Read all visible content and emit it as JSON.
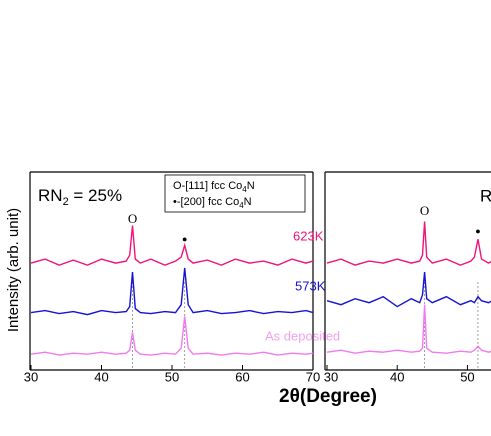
{
  "chart_data": [
    {
      "type": "line",
      "title_parts": [
        "RN",
        "2",
        " = 25%"
      ],
      "legend_lines": [
        [
          "O-[111]  fcc Co",
          "4",
          "N"
        ],
        [
          "•-[200] fcc Co",
          "4",
          "N"
        ]
      ],
      "ylabel": "Intensity (arb. unit)",
      "xlabel": "2θ(Degree)",
      "xlim": [
        30,
        70
      ],
      "xticks": [
        30,
        40,
        50,
        60,
        70
      ],
      "ylim": [
        0,
        100
      ],
      "ref_lines": [
        44.4,
        51.8
      ],
      "peak_labels": [
        {
          "x": 44.4,
          "label": "O"
        },
        {
          "x": 51.8,
          "label": "●"
        }
      ],
      "x": [
        30,
        32,
        34,
        36,
        38,
        40,
        42,
        43.5,
        44,
        44.4,
        44.8,
        45.5,
        47,
        49,
        50.5,
        51.3,
        51.8,
        52.3,
        53,
        55,
        57,
        59,
        61,
        63,
        65,
        67,
        69,
        70
      ],
      "series": [
        {
          "name": "623K",
          "color": "#f0147a",
          "values": [
            54,
            56,
            53,
            55.5,
            53,
            56,
            54,
            55,
            58,
            73,
            56,
            54,
            56,
            53,
            55,
            57,
            63,
            56,
            54,
            55.5,
            53,
            56,
            54,
            55,
            53,
            56,
            54,
            55
          ]
        },
        {
          "name": "573K",
          "color": "#1414d2",
          "values": [
            29,
            30,
            28.5,
            29.5,
            28,
            30,
            29,
            29.5,
            32,
            49.5,
            31,
            29,
            28.5,
            29.5,
            29,
            33,
            51.5,
            33,
            29,
            30,
            28.5,
            29,
            30,
            28.5,
            29.5,
            29,
            30,
            29
          ]
        },
        {
          "name": "As deposited",
          "color": "#f07af0",
          "values": [
            8,
            9,
            7.5,
            8.5,
            8,
            9,
            8,
            8.5,
            10,
            19,
            10,
            8,
            7.5,
            8.5,
            8,
            11,
            27,
            11,
            8,
            8.5,
            7.5,
            8.5,
            8,
            9,
            7.5,
            8.5,
            8,
            8.5
          ]
        }
      ]
    },
    {
      "type": "line",
      "annotation": "R",
      "xlim": [
        30,
        53.5
      ],
      "xticks": [
        30,
        40,
        50
      ],
      "ylim": [
        0,
        100
      ],
      "ref_lines": [
        43.9,
        51.5
      ],
      "peak_labels": [
        {
          "x": 43.9,
          "label": "O"
        },
        {
          "x": 51.5,
          "label": "●"
        }
      ],
      "x": [
        30,
        32,
        34,
        36,
        38,
        40,
        42,
        43.2,
        43.6,
        43.9,
        44.2,
        45,
        47,
        49,
        50.5,
        51,
        51.5,
        52,
        53,
        53.5
      ],
      "series": [
        {
          "color": "#f0147a",
          "values": [
            54,
            56,
            53,
            55,
            54,
            56,
            54,
            55,
            58,
            75,
            57,
            54,
            56,
            53,
            55,
            57,
            66,
            56,
            54,
            55
          ]
        },
        {
          "color": "#1414d2",
          "values": [
            35,
            33,
            36,
            34,
            37,
            32,
            36,
            34,
            38,
            49.5,
            36,
            34,
            37,
            33,
            35,
            34,
            37,
            35,
            34,
            35
          ]
        },
        {
          "color": "#f07af0",
          "values": [
            9,
            10,
            8.5,
            9.5,
            9,
            10,
            9,
            9.5,
            11,
            33,
            11,
            9,
            8.5,
            9.5,
            9,
            10,
            12,
            10,
            9,
            9.5
          ]
        }
      ]
    }
  ]
}
